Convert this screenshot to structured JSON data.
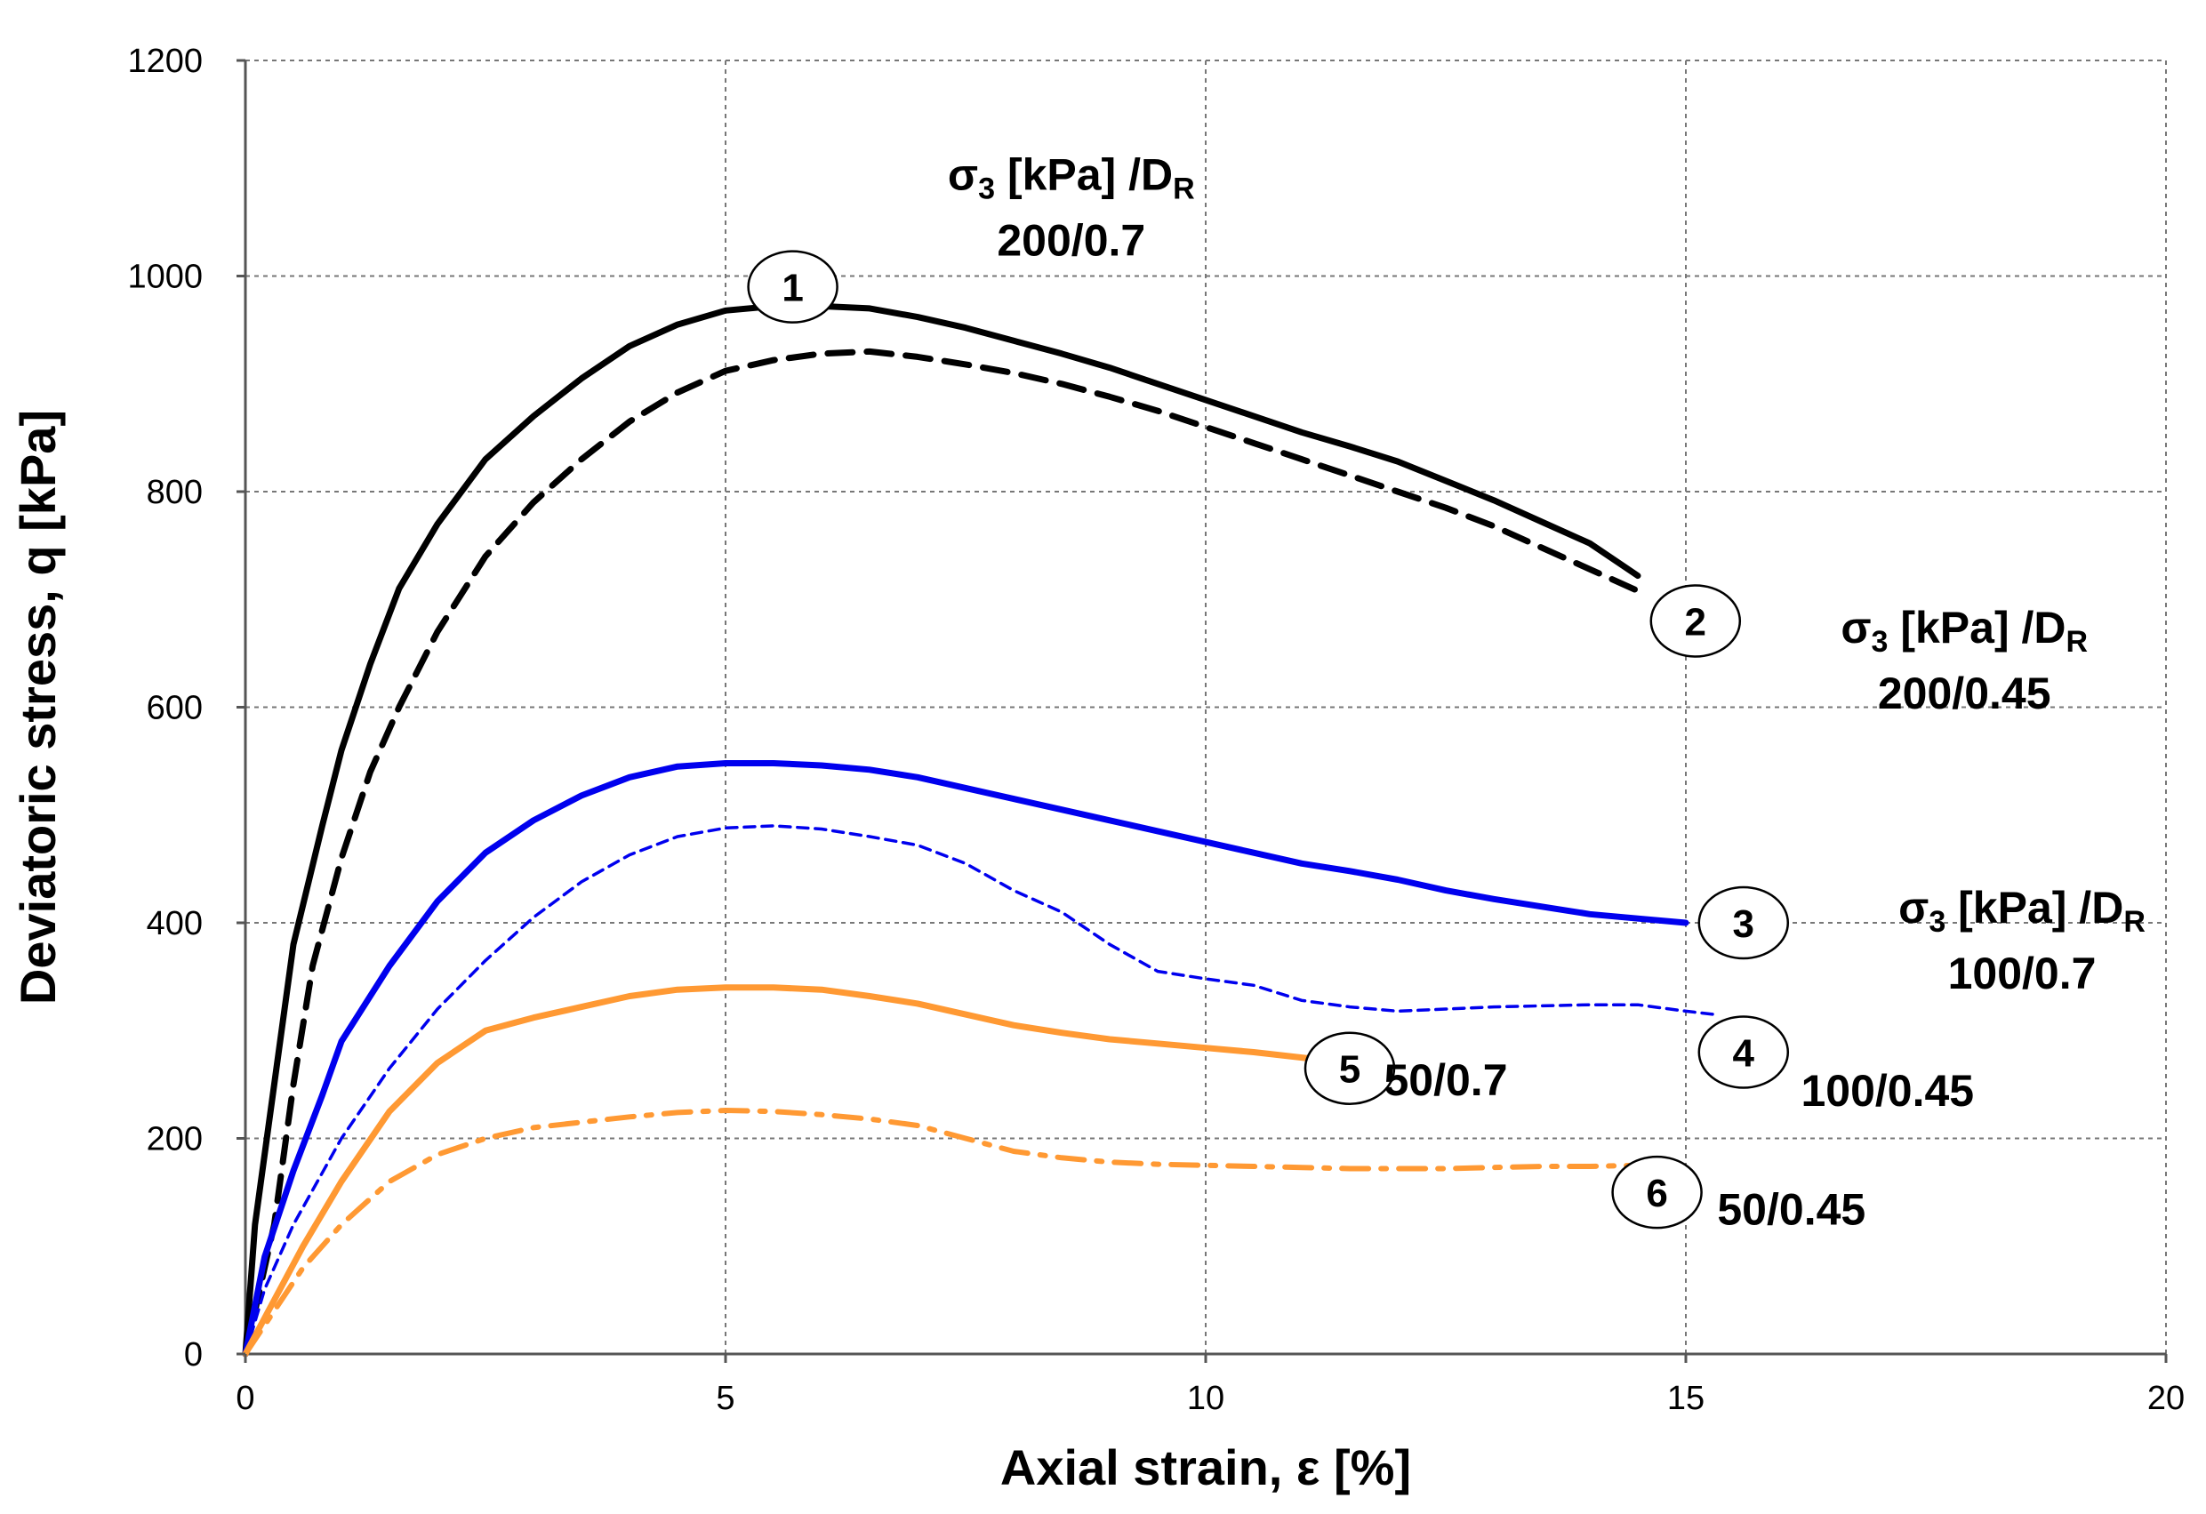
{
  "chart_data": {
    "type": "line",
    "title": "",
    "xlabel": "Axial strain, ε [%]",
    "ylabel": "Deviatoric stress, q [kPa]",
    "xlim": [
      0,
      20
    ],
    "ylim": [
      0,
      1200
    ],
    "xticks": [
      0,
      5,
      10,
      15,
      20
    ],
    "yticks": [
      0,
      200,
      400,
      600,
      800,
      1000,
      1200
    ],
    "grid": true,
    "series": [
      {
        "id": "1",
        "name": "200/0.7",
        "color": "#000000",
        "style": "solid",
        "points": [
          [
            0,
            0
          ],
          [
            0.1,
            120
          ],
          [
            0.3,
            250
          ],
          [
            0.5,
            380
          ],
          [
            0.8,
            490
          ],
          [
            1.0,
            560
          ],
          [
            1.3,
            640
          ],
          [
            1.6,
            710
          ],
          [
            2.0,
            770
          ],
          [
            2.5,
            830
          ],
          [
            3.0,
            870
          ],
          [
            3.5,
            905
          ],
          [
            4.0,
            935
          ],
          [
            4.5,
            955
          ],
          [
            5.0,
            968
          ],
          [
            5.5,
            972
          ],
          [
            6.0,
            972
          ],
          [
            6.5,
            970
          ],
          [
            7.0,
            962
          ],
          [
            7.5,
            952
          ],
          [
            8.0,
            940
          ],
          [
            8.5,
            928
          ],
          [
            9.0,
            915
          ],
          [
            9.5,
            900
          ],
          [
            10.0,
            885
          ],
          [
            10.5,
            870
          ],
          [
            11.0,
            855
          ],
          [
            11.5,
            842
          ],
          [
            12.0,
            828
          ],
          [
            12.5,
            810
          ],
          [
            13.0,
            792
          ],
          [
            13.5,
            772
          ],
          [
            14.0,
            752
          ],
          [
            14.5,
            722
          ]
        ]
      },
      {
        "id": "2",
        "name": "200/0.45",
        "color": "#000000",
        "style": "dashed",
        "points": [
          [
            0,
            0
          ],
          [
            0.3,
            120
          ],
          [
            0.5,
            250
          ],
          [
            0.7,
            360
          ],
          [
            1.0,
            460
          ],
          [
            1.3,
            540
          ],
          [
            1.6,
            600
          ],
          [
            2.0,
            670
          ],
          [
            2.5,
            740
          ],
          [
            3.0,
            790
          ],
          [
            3.5,
            830
          ],
          [
            4.0,
            865
          ],
          [
            4.5,
            892
          ],
          [
            5.0,
            912
          ],
          [
            5.5,
            922
          ],
          [
            6.0,
            928
          ],
          [
            6.5,
            930
          ],
          [
            7.0,
            925
          ],
          [
            7.5,
            918
          ],
          [
            8.0,
            910
          ],
          [
            8.5,
            900
          ],
          [
            9.0,
            888
          ],
          [
            9.5,
            875
          ],
          [
            10.0,
            860
          ],
          [
            10.5,
            845
          ],
          [
            11.0,
            830
          ],
          [
            11.5,
            815
          ],
          [
            12.0,
            800
          ],
          [
            12.5,
            785
          ],
          [
            13.0,
            768
          ],
          [
            13.5,
            748
          ],
          [
            14.0,
            728
          ],
          [
            14.5,
            708
          ]
        ]
      },
      {
        "id": "3",
        "name": "100/0.7",
        "color": "#0000ee",
        "style": "solid",
        "points": [
          [
            0,
            0
          ],
          [
            0.2,
            90
          ],
          [
            0.5,
            170
          ],
          [
            0.8,
            240
          ],
          [
            1.0,
            290
          ],
          [
            1.5,
            360
          ],
          [
            2.0,
            420
          ],
          [
            2.5,
            465
          ],
          [
            3.0,
            495
          ],
          [
            3.5,
            518
          ],
          [
            4.0,
            535
          ],
          [
            4.5,
            545
          ],
          [
            5.0,
            548
          ],
          [
            5.5,
            548
          ],
          [
            6.0,
            546
          ],
          [
            6.5,
            542
          ],
          [
            7.0,
            535
          ],
          [
            7.5,
            525
          ],
          [
            8.0,
            515
          ],
          [
            8.5,
            505
          ],
          [
            9.0,
            495
          ],
          [
            9.5,
            485
          ],
          [
            10.0,
            475
          ],
          [
            10.5,
            465
          ],
          [
            11.0,
            455
          ],
          [
            11.5,
            448
          ],
          [
            12.0,
            440
          ],
          [
            12.5,
            430
          ],
          [
            13.0,
            422
          ],
          [
            13.5,
            415
          ],
          [
            14.0,
            408
          ],
          [
            14.5,
            404
          ],
          [
            15.0,
            400
          ]
        ]
      },
      {
        "id": "4",
        "name": "100/0.45",
        "color": "#0000ee",
        "style": "short-dash",
        "points": [
          [
            0,
            0
          ],
          [
            0.2,
            60
          ],
          [
            0.5,
            120
          ],
          [
            1.0,
            200
          ],
          [
            1.5,
            265
          ],
          [
            2.0,
            320
          ],
          [
            2.5,
            365
          ],
          [
            3.0,
            405
          ],
          [
            3.5,
            438
          ],
          [
            4.0,
            463
          ],
          [
            4.5,
            480
          ],
          [
            5.0,
            488
          ],
          [
            5.5,
            490
          ],
          [
            6.0,
            487
          ],
          [
            6.5,
            480
          ],
          [
            7.0,
            472
          ],
          [
            7.5,
            455
          ],
          [
            8.0,
            430
          ],
          [
            8.5,
            410
          ],
          [
            9.0,
            380
          ],
          [
            9.5,
            355
          ],
          [
            10.0,
            348
          ],
          [
            10.5,
            342
          ],
          [
            11.0,
            328
          ],
          [
            11.5,
            322
          ],
          [
            12.0,
            318
          ],
          [
            12.5,
            320
          ],
          [
            13.0,
            322
          ],
          [
            13.5,
            323
          ],
          [
            14.0,
            324
          ],
          [
            14.5,
            324
          ],
          [
            15.0,
            318
          ],
          [
            15.3,
            315
          ]
        ]
      },
      {
        "id": "5",
        "name": "50/0.7",
        "color": "#ff9933",
        "style": "solid",
        "points": [
          [
            0,
            0
          ],
          [
            0.3,
            50
          ],
          [
            0.6,
            100
          ],
          [
            1.0,
            160
          ],
          [
            1.5,
            225
          ],
          [
            2.0,
            270
          ],
          [
            2.5,
            300
          ],
          [
            3.0,
            312
          ],
          [
            3.5,
            322
          ],
          [
            4.0,
            332
          ],
          [
            4.5,
            338
          ],
          [
            5.0,
            340
          ],
          [
            5.5,
            340
          ],
          [
            6.0,
            338
          ],
          [
            6.5,
            332
          ],
          [
            7.0,
            325
          ],
          [
            7.5,
            315
          ],
          [
            8.0,
            305
          ],
          [
            8.5,
            298
          ],
          [
            9.0,
            292
          ],
          [
            9.5,
            288
          ],
          [
            10.0,
            284
          ],
          [
            10.5,
            280
          ],
          [
            11.0,
            275
          ],
          [
            11.3,
            272
          ]
        ]
      },
      {
        "id": "6",
        "name": "50/0.45",
        "color": "#ff9933",
        "style": "dash-dot",
        "points": [
          [
            0,
            0
          ],
          [
            0.3,
            40
          ],
          [
            0.6,
            80
          ],
          [
            1.0,
            120
          ],
          [
            1.5,
            160
          ],
          [
            2.0,
            185
          ],
          [
            2.5,
            200
          ],
          [
            3.0,
            210
          ],
          [
            3.5,
            215
          ],
          [
            4.0,
            220
          ],
          [
            4.5,
            224
          ],
          [
            5.0,
            226
          ],
          [
            5.5,
            225
          ],
          [
            6.0,
            222
          ],
          [
            6.5,
            218
          ],
          [
            7.0,
            212
          ],
          [
            7.5,
            200
          ],
          [
            8.0,
            188
          ],
          [
            8.5,
            182
          ],
          [
            9.0,
            178
          ],
          [
            9.5,
            176
          ],
          [
            10.0,
            175
          ],
          [
            10.5,
            174
          ],
          [
            11.0,
            173
          ],
          [
            11.5,
            172
          ],
          [
            12.0,
            172
          ],
          [
            12.5,
            172
          ],
          [
            13.0,
            173
          ],
          [
            13.5,
            174
          ],
          [
            14.0,
            174
          ],
          [
            14.5,
            175
          ]
        ]
      }
    ],
    "markers": [
      {
        "label": "1",
        "x": 5.7,
        "y": 990
      },
      {
        "label": "2",
        "x": 15.1,
        "y": 680
      },
      {
        "label": "3",
        "x": 15.6,
        "y": 400
      },
      {
        "label": "4",
        "x": 15.6,
        "y": 280
      },
      {
        "label": "5",
        "x": 11.5,
        "y": 265
      },
      {
        "label": "6",
        "x": 14.7,
        "y": 150
      }
    ],
    "annotations": [
      {
        "id": "ann-top",
        "lines": [
          {
            "sigma": "σ",
            "sub3": "3",
            "mid": " [kPa] /D",
            "subR": "R"
          },
          {
            "text": "200/0.7"
          }
        ],
        "x": 8.6,
        "y": 1080
      },
      {
        "id": "ann-2",
        "lines": [
          {
            "sigma": "σ",
            "sub3": "3",
            "mid": " [kPa] /D",
            "subR": "R"
          },
          {
            "text": "200/0.45"
          }
        ],
        "x": 17.9,
        "y": 660
      },
      {
        "id": "ann-3",
        "lines": [
          {
            "sigma": "σ",
            "sub3": "3",
            "mid": " [kPa] /D",
            "subR": "R"
          },
          {
            "text": "100/0.7"
          }
        ],
        "x": 18.5,
        "y": 400
      }
    ],
    "inline_labels": [
      {
        "text": "50/0.7",
        "x": 12.5,
        "y": 255
      },
      {
        "text": "100/0.45",
        "x": 17.1,
        "y": 245
      },
      {
        "text": "50/0.45",
        "x": 16.1,
        "y": 135
      }
    ]
  }
}
